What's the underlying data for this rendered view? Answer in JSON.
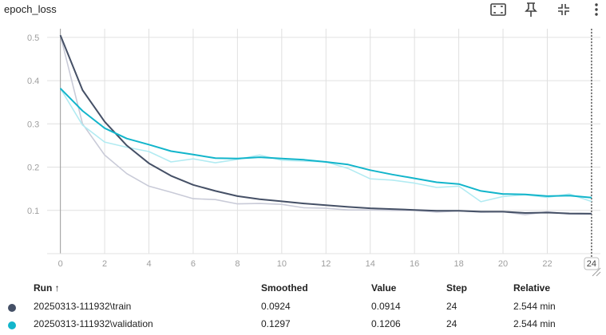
{
  "card": {
    "title": "epoch_loss",
    "toolbar_icons": [
      "fit-domain-icon",
      "pin-icon",
      "collapse-icon",
      "more-vert-icon"
    ]
  },
  "colors": {
    "train": "#455066",
    "validation": "#12b5cb",
    "train_raw": "#c9cbd8",
    "validation_raw": "#b2ebf2",
    "grid": "#e0e0e0",
    "axis": "#9e9e9e"
  },
  "chart_data": {
    "type": "line",
    "title": "",
    "xlabel": "",
    "ylabel": "",
    "x_ticks": [
      "0",
      "2",
      "4",
      "6",
      "8",
      "10",
      "12",
      "14",
      "16",
      "18",
      "20",
      "22",
      "24"
    ],
    "y_ticks": [
      "0.1",
      "0.2",
      "0.3",
      "0.4",
      "0.5"
    ],
    "xlim": [
      -0.6,
      24.4
    ],
    "ylim": [
      0,
      0.52
    ],
    "grid": true,
    "series": [
      {
        "name": "20250313-111932\\train",
        "kind": "smoothed",
        "x": [
          0,
          1,
          2,
          3,
          4,
          5,
          6,
          7,
          8,
          9,
          10,
          11,
          12,
          13,
          14,
          15,
          16,
          17,
          18,
          19,
          20,
          21,
          22,
          23,
          24
        ],
        "values": [
          0.505,
          0.378,
          0.305,
          0.25,
          0.209,
          0.18,
          0.159,
          0.145,
          0.133,
          0.126,
          0.121,
          0.116,
          0.112,
          0.108,
          0.105,
          0.103,
          0.101,
          0.099,
          0.099,
          0.097,
          0.097,
          0.094,
          0.095,
          0.093,
          0.0924
        ]
      },
      {
        "name": "20250313-111932\\train",
        "kind": "raw",
        "x": [
          0,
          1,
          2,
          3,
          4,
          5,
          6,
          7,
          8,
          9,
          10,
          11,
          12,
          13,
          14,
          15,
          16,
          17,
          18,
          19,
          20,
          21,
          22,
          23,
          24
        ],
        "values": [
          0.505,
          0.3,
          0.228,
          0.185,
          0.156,
          0.142,
          0.127,
          0.125,
          0.115,
          0.116,
          0.114,
          0.106,
          0.105,
          0.101,
          0.101,
          0.1,
          0.1,
          0.096,
          0.099,
          0.096,
          0.097,
          0.09,
          0.097,
          0.091,
          0.0914
        ]
      },
      {
        "name": "20250313-111932\\validation",
        "kind": "smoothed",
        "x": [
          0,
          1,
          2,
          3,
          4,
          5,
          6,
          7,
          8,
          9,
          10,
          11,
          12,
          13,
          14,
          15,
          16,
          17,
          18,
          19,
          20,
          21,
          22,
          23,
          24
        ],
        "values": [
          0.382,
          0.33,
          0.29,
          0.266,
          0.252,
          0.237,
          0.229,
          0.221,
          0.22,
          0.223,
          0.22,
          0.217,
          0.212,
          0.206,
          0.193,
          0.183,
          0.174,
          0.165,
          0.161,
          0.145,
          0.138,
          0.137,
          0.133,
          0.134,
          0.1297
        ]
      },
      {
        "name": "20250313-111932\\validation",
        "kind": "raw",
        "x": [
          0,
          1,
          2,
          3,
          4,
          5,
          6,
          7,
          8,
          9,
          10,
          11,
          12,
          13,
          14,
          15,
          16,
          17,
          18,
          19,
          20,
          21,
          22,
          23,
          24
        ],
        "values": [
          0.382,
          0.297,
          0.258,
          0.246,
          0.236,
          0.212,
          0.219,
          0.21,
          0.218,
          0.228,
          0.216,
          0.214,
          0.212,
          0.197,
          0.173,
          0.17,
          0.163,
          0.153,
          0.156,
          0.12,
          0.132,
          0.136,
          0.13,
          0.138,
          0.1206
        ]
      }
    ]
  },
  "table": {
    "headers": {
      "run": "Run ↑",
      "smoothed": "Smoothed",
      "value": "Value",
      "step": "Step",
      "relative": "Relative"
    },
    "rows": [
      {
        "run": "20250313-111932\\train",
        "smoothed": "0.0924",
        "value": "0.0914",
        "step": "24",
        "relative": "2.544 min",
        "color": "#455066"
      },
      {
        "run": "20250313-111932\\validation",
        "smoothed": "0.1297",
        "value": "0.1206",
        "step": "24",
        "relative": "2.544 min",
        "color": "#12b5cb"
      }
    ]
  }
}
